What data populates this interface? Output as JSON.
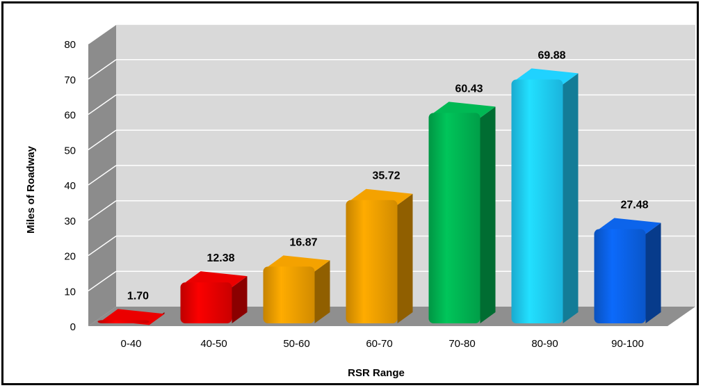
{
  "chart_data": {
    "type": "bar",
    "categories": [
      "0-40",
      "40-50",
      "50-60",
      "60-70",
      "70-80",
      "80-90",
      "90-100"
    ],
    "values": [
      1.7,
      12.38,
      16.87,
      35.72,
      60.43,
      69.88,
      27.48
    ],
    "value_labels": [
      "1.70",
      "12.38",
      "16.87",
      "35.72",
      "60.43",
      "69.88",
      "27.48"
    ],
    "bar_colors": [
      "#e00000",
      "#e00000",
      "#e89a00",
      "#e89a00",
      "#00b050",
      "#1ec8f4",
      "#0b5fe0"
    ],
    "xlabel": "RSR Range",
    "ylabel": "Miles of Roadway",
    "ylim": [
      0,
      80
    ],
    "yticks": [
      0,
      10,
      20,
      30,
      40,
      50,
      60,
      70,
      80
    ],
    "grid": true,
    "style": "3d-column"
  }
}
